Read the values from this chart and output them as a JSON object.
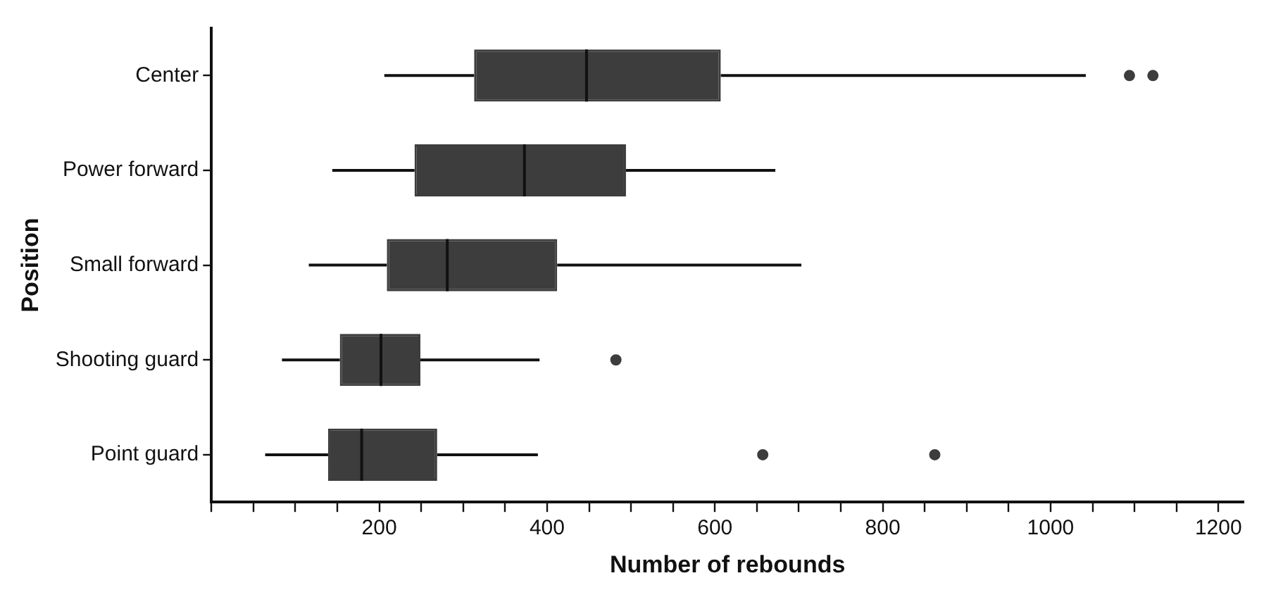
{
  "chart_data": {
    "type": "box",
    "orientation": "horizontal",
    "xlabel": "Number of rebounds",
    "ylabel": "Position",
    "categories": [
      "Center",
      "Power forward",
      "Small forward",
      "Shooting guard",
      "Point guard"
    ],
    "color": "#3d3d3d",
    "marker": "circle",
    "grid": false,
    "boxes": [
      {
        "low": 206,
        "q1": 313,
        "median": 447,
        "q3": 607,
        "high": 1042,
        "outliers": [
          1094,
          1122
        ]
      },
      {
        "low": 144,
        "q1": 242,
        "median": 373,
        "q3": 494,
        "high": 672
      },
      {
        "low": 116,
        "q1": 209,
        "median": 281,
        "q3": 412,
        "high": 703
      },
      {
        "low": 84,
        "q1": 153,
        "median": 202,
        "q3": 249,
        "high": 391,
        "outliers": [
          482
        ]
      },
      {
        "low": 64,
        "q1": 139,
        "median": 179,
        "q3": 269,
        "high": 389,
        "outliers": [
          657,
          862
        ]
      }
    ],
    "xlim": [
      0,
      1230
    ],
    "xticks": [
      {
        "value": 0,
        "label": null
      },
      {
        "value": 50,
        "label": null
      },
      {
        "value": 100,
        "label": null
      },
      {
        "value": 150,
        "label": null
      },
      200,
      {
        "value": 250,
        "label": null
      },
      {
        "value": 300,
        "label": null
      },
      {
        "value": 350,
        "label": null
      },
      400,
      {
        "value": 450,
        "label": null
      },
      {
        "value": 500,
        "label": null
      },
      {
        "value": 550,
        "label": null
      },
      600,
      {
        "value": 650,
        "label": null
      },
      {
        "value": 700,
        "label": null
      },
      {
        "value": 750,
        "label": null
      },
      800,
      {
        "value": 850,
        "label": null
      },
      {
        "value": 900,
        "label": null
      },
      {
        "value": 950,
        "label": null
      },
      1000,
      {
        "value": 1050,
        "label": null
      },
      {
        "value": 1100,
        "label": null
      },
      {
        "value": 1150,
        "label": null
      },
      1200
    ]
  }
}
